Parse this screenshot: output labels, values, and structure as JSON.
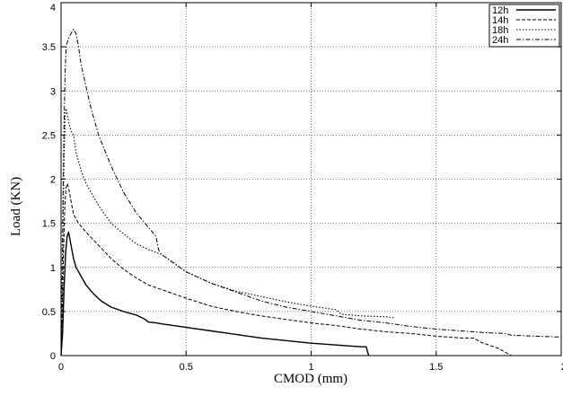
{
  "chart_data": {
    "type": "line",
    "title": "",
    "xlabel": "CMOD (mm)",
    "ylabel": "Load (KN)",
    "xlim": [
      0,
      2
    ],
    "ylim": [
      0,
      4
    ],
    "xticks": [
      0,
      0.5,
      1,
      1.5,
      2
    ],
    "xtick_labels": [
      "0",
      "0.5",
      "1",
      "1.5",
      "2"
    ],
    "yticks": [
      0,
      0.5,
      1,
      1.5,
      2,
      2.5,
      3,
      3.5,
      4
    ],
    "ytick_labels": [
      "0",
      "0.5",
      "1",
      "1.5",
      "2",
      "2.5",
      "3",
      "3.5",
      "4"
    ],
    "grid": true,
    "legend": "top-right",
    "series": [
      {
        "name": "12h",
        "style": "solid",
        "x": [
          0,
          0.006,
          0.012,
          0.018,
          0.024,
          0.03,
          0.04,
          0.05,
          0.06,
          0.08,
          0.1,
          0.13,
          0.16,
          0.2,
          0.25,
          0.3,
          0.33,
          0.35,
          0.38,
          0.4,
          0.5,
          0.6,
          0.7,
          0.8,
          0.9,
          1.0,
          1.1,
          1.2,
          1.22,
          1.23
        ],
        "values": [
          0,
          0.25,
          0.75,
          1.15,
          1.35,
          1.4,
          1.25,
          1.1,
          1.0,
          0.9,
          0.8,
          0.7,
          0.62,
          0.55,
          0.5,
          0.46,
          0.42,
          0.38,
          0.37,
          0.36,
          0.32,
          0.28,
          0.24,
          0.2,
          0.17,
          0.14,
          0.12,
          0.1,
          0.1,
          0
        ]
      },
      {
        "name": "14h",
        "style": "dashed",
        "x": [
          0,
          0.005,
          0.01,
          0.015,
          0.02,
          0.025,
          0.03,
          0.04,
          0.05,
          0.07,
          0.1,
          0.15,
          0.2,
          0.25,
          0.3,
          0.35,
          0.4,
          0.5,
          0.6,
          0.7,
          0.8,
          0.9,
          1.0,
          1.1,
          1.2,
          1.3,
          1.4,
          1.5,
          1.6,
          1.65,
          1.68,
          1.75,
          1.8
        ],
        "values": [
          0,
          0.5,
          1.2,
          1.7,
          1.9,
          1.95,
          1.9,
          1.75,
          1.6,
          1.5,
          1.4,
          1.25,
          1.1,
          0.98,
          0.88,
          0.8,
          0.75,
          0.65,
          0.56,
          0.5,
          0.45,
          0.41,
          0.37,
          0.34,
          0.3,
          0.27,
          0.25,
          0.22,
          0.2,
          0.2,
          0.15,
          0.08,
          0
        ]
      },
      {
        "name": "18h",
        "style": "dotted",
        "x": [
          0,
          0.004,
          0.008,
          0.012,
          0.016,
          0.02,
          0.03,
          0.04,
          0.05,
          0.06,
          0.08,
          0.1,
          0.15,
          0.2,
          0.25,
          0.3,
          0.35,
          0.4,
          0.45,
          0.5,
          0.6,
          0.7,
          0.8,
          0.9,
          1.0,
          1.1,
          1.12,
          1.2,
          1.3,
          1.33
        ],
        "values": [
          0,
          0.6,
          1.5,
          2.2,
          2.7,
          2.8,
          2.65,
          2.55,
          2.5,
          2.3,
          2.1,
          1.95,
          1.7,
          1.5,
          1.38,
          1.27,
          1.2,
          1.15,
          1.05,
          0.95,
          0.82,
          0.73,
          0.67,
          0.61,
          0.56,
          0.52,
          0.47,
          0.45,
          0.44,
          0.43
        ]
      },
      {
        "name": "24h",
        "style": "dashdot",
        "x": [
          0,
          0.004,
          0.008,
          0.012,
          0.016,
          0.02,
          0.03,
          0.04,
          0.05,
          0.06,
          0.07,
          0.08,
          0.1,
          0.12,
          0.15,
          0.2,
          0.25,
          0.3,
          0.35,
          0.38,
          0.39,
          0.4,
          0.45,
          0.5,
          0.6,
          0.7,
          0.8,
          0.9,
          1.0,
          1.1,
          1.2,
          1.3,
          1.4,
          1.5,
          1.6,
          1.7,
          1.78,
          1.8,
          1.9,
          2.0
        ],
        "values": [
          0,
          0.8,
          1.8,
          2.6,
          3.2,
          3.5,
          3.6,
          3.65,
          3.7,
          3.65,
          3.5,
          3.3,
          3.05,
          2.8,
          2.5,
          2.15,
          1.85,
          1.62,
          1.45,
          1.35,
          1.2,
          1.15,
          1.05,
          0.95,
          0.82,
          0.72,
          0.62,
          0.55,
          0.5,
          0.45,
          0.4,
          0.37,
          0.33,
          0.3,
          0.28,
          0.26,
          0.25,
          0.23,
          0.22,
          0.21
        ]
      }
    ]
  }
}
